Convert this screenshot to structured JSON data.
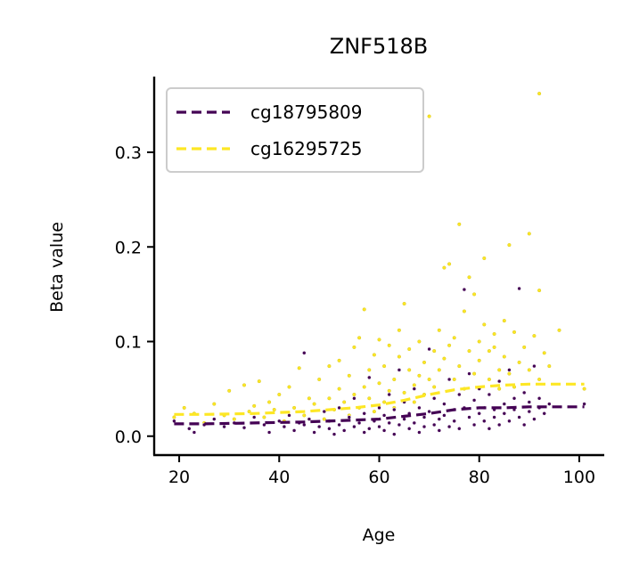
{
  "chart_data": {
    "type": "scatter",
    "title": "ZNF518B",
    "xlabel": "Age",
    "ylabel": "Beta value",
    "xlim": [
      15,
      105
    ],
    "ylim": [
      -0.02,
      0.38
    ],
    "xticks": [
      20,
      40,
      60,
      80,
      100
    ],
    "xtick_labels": [
      "20",
      "40",
      "60",
      "80",
      "100"
    ],
    "yticks": [
      0.0,
      0.1,
      0.2,
      0.3
    ],
    "ytick_labels": [
      "0.0",
      "0.1",
      "0.2",
      "0.3"
    ],
    "grid": false,
    "legend_position": "top-left",
    "series": [
      {
        "name": "cg18795809",
        "color": "#440154",
        "trend": {
          "x": [
            19,
            25,
            35,
            45,
            55,
            60,
            65,
            70,
            75,
            80,
            85,
            90,
            95,
            101
          ],
          "y": [
            0.013,
            0.013,
            0.014,
            0.015,
            0.017,
            0.018,
            0.021,
            0.024,
            0.028,
            0.03,
            0.03,
            0.031,
            0.031,
            0.031
          ]
        },
        "points": [
          [
            19,
            0.016
          ],
          [
            22,
            0.008
          ],
          [
            23,
            0.004
          ],
          [
            25,
            0.012
          ],
          [
            27,
            0.018
          ],
          [
            29,
            0.01
          ],
          [
            31,
            0.014
          ],
          [
            33,
            0.009
          ],
          [
            35,
            0.02
          ],
          [
            37,
            0.012
          ],
          [
            38,
            0.004
          ],
          [
            40,
            0.016
          ],
          [
            41,
            0.01
          ],
          [
            42,
            0.022
          ],
          [
            43,
            0.006
          ],
          [
            44,
            0.014
          ],
          [
            45,
            0.088
          ],
          [
            45,
            0.012
          ],
          [
            46,
            0.018
          ],
          [
            47,
            0.004
          ],
          [
            48,
            0.01
          ],
          [
            49,
            0.026
          ],
          [
            50,
            0.008
          ],
          [
            50,
            0.016
          ],
          [
            51,
            0.002
          ],
          [
            52,
            0.012
          ],
          [
            52,
            0.03
          ],
          [
            53,
            0.006
          ],
          [
            54,
            0.02
          ],
          [
            55,
            0.01
          ],
          [
            55,
            0.04
          ],
          [
            56,
            0.014
          ],
          [
            57,
            0.004
          ],
          [
            57,
            0.024
          ],
          [
            58,
            0.008
          ],
          [
            58,
            0.062
          ],
          [
            59,
            0.016
          ],
          [
            60,
            0.03
          ],
          [
            60,
            0.01
          ],
          [
            61,
            0.022
          ],
          [
            61,
            0.006
          ],
          [
            62,
            0.044
          ],
          [
            62,
            0.014
          ],
          [
            63,
            0.002
          ],
          [
            63,
            0.028
          ],
          [
            64,
            0.012
          ],
          [
            64,
            0.07
          ],
          [
            65,
            0.018
          ],
          [
            65,
            0.036
          ],
          [
            66,
            0.008
          ],
          [
            66,
            0.024
          ],
          [
            67,
            0.014
          ],
          [
            67,
            0.05
          ],
          [
            68,
            0.004
          ],
          [
            68,
            0.03
          ],
          [
            69,
            0.02
          ],
          [
            69,
            0.01
          ],
          [
            70,
            0.092
          ],
          [
            70,
            0.026
          ],
          [
            71,
            0.012
          ],
          [
            71,
            0.04
          ],
          [
            72,
            0.018
          ],
          [
            72,
            0.006
          ],
          [
            73,
            0.034
          ],
          [
            73,
            0.022
          ],
          [
            74,
            0.01
          ],
          [
            74,
            0.06
          ],
          [
            75,
            0.028
          ],
          [
            75,
            0.016
          ],
          [
            76,
            0.044
          ],
          [
            76,
            0.008
          ],
          [
            77,
            0.155
          ],
          [
            77,
            0.03
          ],
          [
            78,
            0.02
          ],
          [
            78,
            0.066
          ],
          [
            79,
            0.012
          ],
          [
            79,
            0.038
          ],
          [
            80,
            0.024
          ],
          [
            80,
            0.05
          ],
          [
            81,
            0.016
          ],
          [
            81,
            0.03
          ],
          [
            82,
            0.008
          ],
          [
            82,
            0.044
          ],
          [
            83,
            0.028
          ],
          [
            83,
            0.02
          ],
          [
            84,
            0.058
          ],
          [
            84,
            0.012
          ],
          [
            85,
            0.034
          ],
          [
            85,
            0.024
          ],
          [
            86,
            0.07
          ],
          [
            86,
            0.016
          ],
          [
            87,
            0.04
          ],
          [
            87,
            0.028
          ],
          [
            88,
            0.156
          ],
          [
            88,
            0.02
          ],
          [
            89,
            0.046
          ],
          [
            89,
            0.012
          ],
          [
            90,
            0.036
          ],
          [
            90,
            0.026
          ],
          [
            91,
            0.074
          ],
          [
            91,
            0.018
          ],
          [
            92,
            0.03
          ],
          [
            92,
            0.04
          ],
          [
            93,
            0.024
          ],
          [
            94,
            0.034
          ],
          [
            101,
            0.034
          ]
        ]
      },
      {
        "name": "cg16295725",
        "color": "#fde725",
        "trend": {
          "x": [
            19,
            25,
            35,
            45,
            55,
            60,
            65,
            70,
            75,
            80,
            85,
            90,
            95,
            101
          ],
          "y": [
            0.023,
            0.023,
            0.024,
            0.026,
            0.03,
            0.033,
            0.038,
            0.044,
            0.049,
            0.052,
            0.054,
            0.055,
            0.055,
            0.055
          ]
        },
        "points": [
          [
            19,
            0.02
          ],
          [
            21,
            0.03
          ],
          [
            23,
            0.024
          ],
          [
            25,
            0.014
          ],
          [
            27,
            0.034
          ],
          [
            29,
            0.022
          ],
          [
            30,
            0.048
          ],
          [
            31,
            0.018
          ],
          [
            33,
            0.054
          ],
          [
            34,
            0.026
          ],
          [
            35,
            0.032
          ],
          [
            36,
            0.058
          ],
          [
            37,
            0.02
          ],
          [
            38,
            0.036
          ],
          [
            39,
            0.028
          ],
          [
            40,
            0.044
          ],
          [
            41,
            0.016
          ],
          [
            42,
            0.052
          ],
          [
            43,
            0.03
          ],
          [
            44,
            0.072
          ],
          [
            45,
            0.022
          ],
          [
            46,
            0.04
          ],
          [
            47,
            0.034
          ],
          [
            48,
            0.06
          ],
          [
            49,
            0.018
          ],
          [
            50,
            0.074
          ],
          [
            50,
            0.04
          ],
          [
            51,
            0.028
          ],
          [
            52,
            0.05
          ],
          [
            52,
            0.08
          ],
          [
            53,
            0.036
          ],
          [
            54,
            0.022
          ],
          [
            54,
            0.064
          ],
          [
            55,
            0.044
          ],
          [
            55,
            0.094
          ],
          [
            56,
            0.03
          ],
          [
            56,
            0.104
          ],
          [
            57,
            0.134
          ],
          [
            57,
            0.052
          ],
          [
            58,
            0.04
          ],
          [
            58,
            0.07
          ],
          [
            59,
            0.026
          ],
          [
            59,
            0.086
          ],
          [
            60,
            0.056
          ],
          [
            60,
            0.102
          ],
          [
            61,
            0.036
          ],
          [
            61,
            0.074
          ],
          [
            62,
            0.048
          ],
          [
            62,
            0.096
          ],
          [
            63,
            0.06
          ],
          [
            63,
            0.03
          ],
          [
            64,
            0.084
          ],
          [
            64,
            0.112
          ],
          [
            65,
            0.14
          ],
          [
            65,
            0.046
          ],
          [
            66,
            0.07
          ],
          [
            66,
            0.092
          ],
          [
            67,
            0.054
          ],
          [
            67,
            0.036
          ],
          [
            68,
            0.1
          ],
          [
            68,
            0.064
          ],
          [
            69,
            0.078
          ],
          [
            69,
            0.044
          ],
          [
            70,
            0.338
          ],
          [
            70,
            0.06
          ],
          [
            71,
            0.09
          ],
          [
            71,
            0.052
          ],
          [
            72,
            0.112
          ],
          [
            72,
            0.07
          ],
          [
            73,
            0.178
          ],
          [
            73,
            0.082
          ],
          [
            74,
            0.182
          ],
          [
            74,
            0.096
          ],
          [
            75,
            0.06
          ],
          [
            75,
            0.104
          ],
          [
            76,
            0.224
          ],
          [
            76,
            0.074
          ],
          [
            77,
            0.132
          ],
          [
            77,
            0.05
          ],
          [
            78,
            0.168
          ],
          [
            78,
            0.09
          ],
          [
            79,
            0.15
          ],
          [
            79,
            0.066
          ],
          [
            80,
            0.1
          ],
          [
            80,
            0.08
          ],
          [
            81,
            0.188
          ],
          [
            81,
            0.118
          ],
          [
            82,
            0.06
          ],
          [
            82,
            0.09
          ],
          [
            83,
            0.094
          ],
          [
            83,
            0.108
          ],
          [
            84,
            0.07
          ],
          [
            84,
            0.05
          ],
          [
            85,
            0.122
          ],
          [
            85,
            0.084
          ],
          [
            86,
            0.202
          ],
          [
            86,
            0.066
          ],
          [
            87,
            0.11
          ],
          [
            87,
            0.052
          ],
          [
            88,
            0.078
          ],
          [
            89,
            0.094
          ],
          [
            90,
            0.214
          ],
          [
            90,
            0.07
          ],
          [
            91,
            0.106
          ],
          [
            92,
            0.362
          ],
          [
            92,
            0.154
          ],
          [
            92,
            0.06
          ],
          [
            93,
            0.088
          ],
          [
            94,
            0.074
          ],
          [
            96,
            0.112
          ],
          [
            101,
            0.05
          ]
        ]
      }
    ]
  }
}
